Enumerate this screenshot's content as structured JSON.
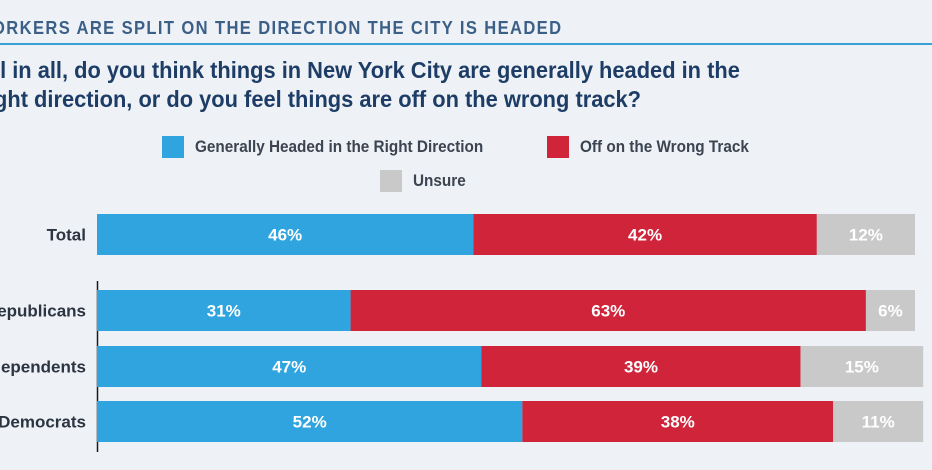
{
  "header": {
    "title": "ORKERS ARE SPLIT ON THE DIRECTION THE CITY IS HEADED"
  },
  "question": {
    "line1": "ll in all, do you think things in New York City are generally headed in the",
    "line2": "ght direction, or do you feel things are off on the wrong track?"
  },
  "colors": {
    "right_direction": "#2fa4df",
    "wrong_track": "#cf2439",
    "unsure": "#c9c9c9"
  },
  "chart_data": {
    "type": "bar",
    "orientation": "horizontal",
    "stacked": true,
    "unit": "%",
    "categories": [
      "Total",
      "epublicans",
      "ependents",
      "Democrats"
    ],
    "series": [
      {
        "name": "Generally Headed in the Right Direction",
        "values": [
          46,
          31,
          47,
          52
        ],
        "labels": [
          "46%",
          "31%",
          "47%",
          "52%"
        ]
      },
      {
        "name": "Off on the Wrong Track",
        "values": [
          42,
          63,
          39,
          38
        ],
        "labels": [
          "42%",
          "63%",
          "39%",
          "38%"
        ]
      },
      {
        "name": "Unsure",
        "values": [
          12,
          6,
          15,
          11
        ],
        "labels": [
          "12%",
          "6%",
          "15%",
          "11%"
        ]
      }
    ],
    "xlim": [
      0,
      100
    ],
    "legend_position": "top",
    "grid": false
  }
}
